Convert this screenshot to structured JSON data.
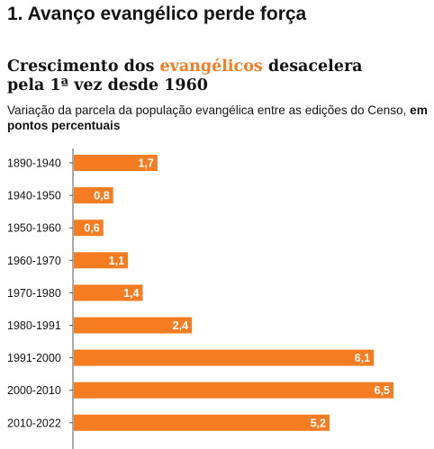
{
  "section_title": "1. Avanço evangélico perde força",
  "chart_data": {
    "type": "bar",
    "orientation": "horizontal",
    "title_parts": [
      "Crescimento dos ",
      "evangélicos",
      " desacelera pela 1ª vez desde 1960"
    ],
    "subtitle": "Variação da parcela da população evangélica entre as edições do Censo, ",
    "subtitle_bold": "em pontos percentuais",
    "categories": [
      "1890-1940",
      "1940-1950",
      "1950-1960",
      "1960-1970",
      "1970-1980",
      "1980-1991",
      "1991-2000",
      "2000-2010",
      "2010-2022"
    ],
    "values": [
      1.7,
      0.8,
      0.6,
      1.1,
      1.4,
      2.4,
      6.1,
      6.5,
      5.2
    ],
    "value_labels": [
      "1,7",
      "0,8",
      "0,6",
      "1,1",
      "1,4",
      "2,4",
      "6,1",
      "6,5",
      "5,2"
    ],
    "xlim": [
      0,
      6.5
    ],
    "grid": false,
    "colors": {
      "bar": "#f57c20",
      "highlight": "#f57c20",
      "text": "#141414",
      "axis": "#555555"
    }
  }
}
